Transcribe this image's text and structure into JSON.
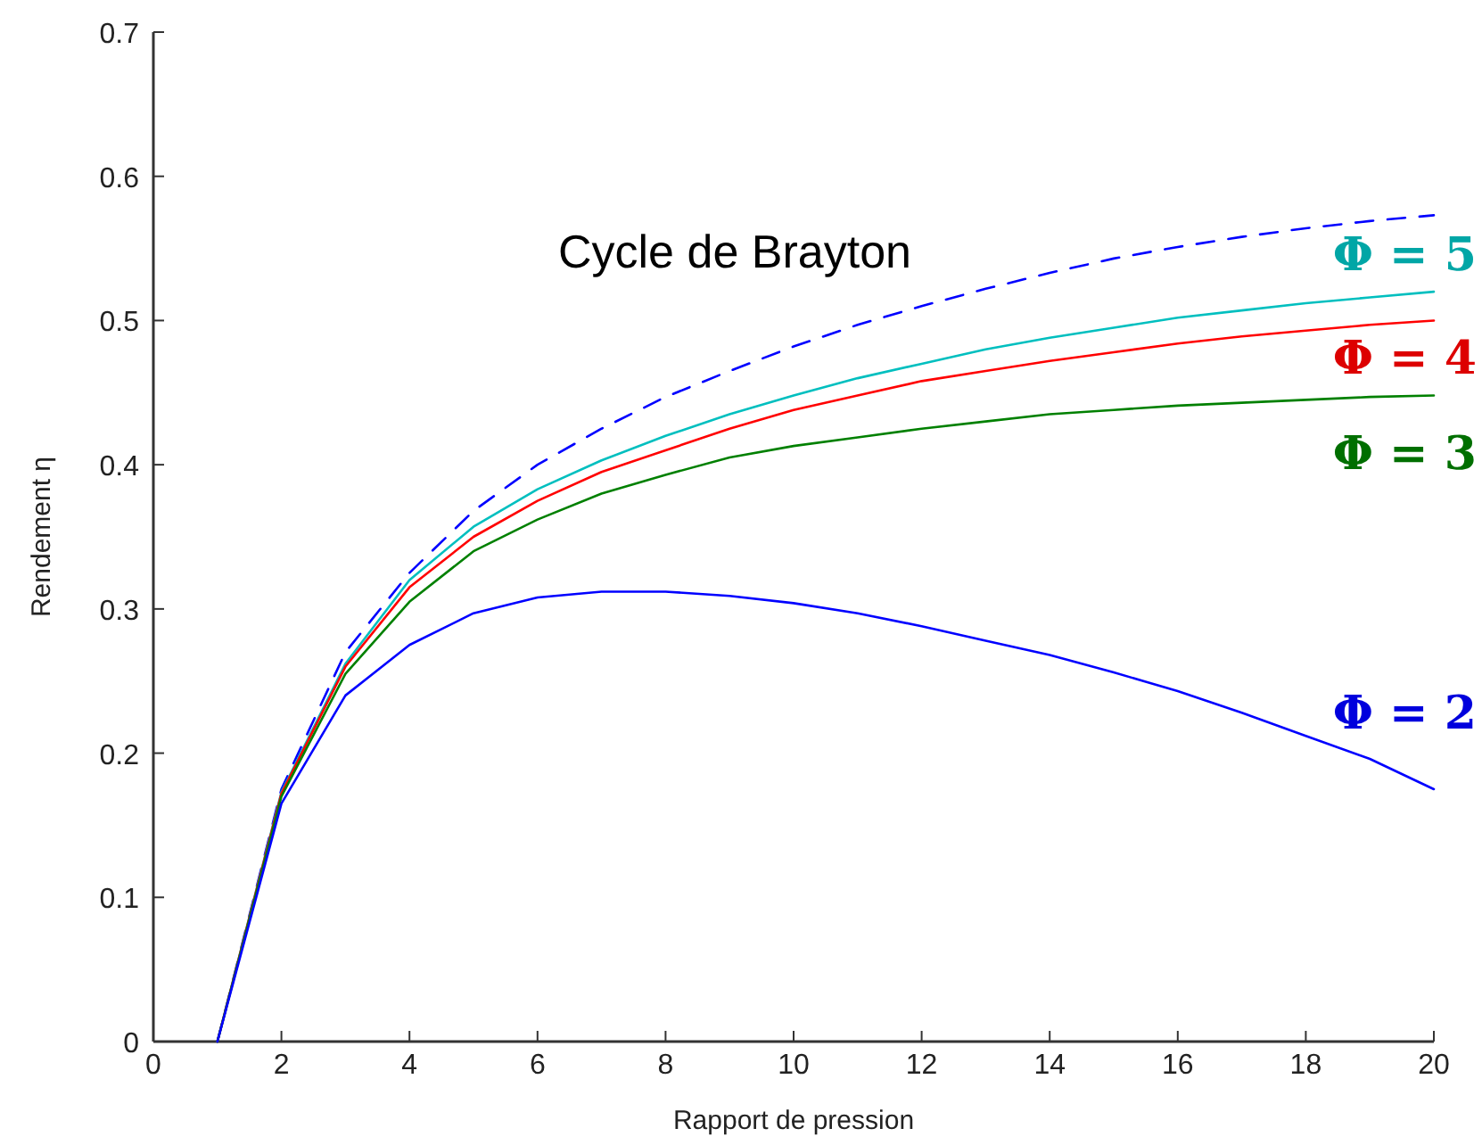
{
  "chart_data": {
    "type": "line",
    "title": "Cycle de Brayton",
    "xlabel": "Rapport de pression",
    "ylabel": "Rendement η",
    "xlim": [
      0,
      20
    ],
    "xticks": [
      0,
      2,
      4,
      6,
      8,
      10,
      12,
      14,
      16,
      18,
      20
    ],
    "ylim": [
      0,
      0.7
    ],
    "yticks": [
      0,
      0.1,
      0.2,
      0.3,
      0.4,
      0.5,
      0.6,
      0.7
    ],
    "x": [
      1,
      2,
      3,
      4,
      5,
      6,
      7,
      8,
      9,
      10,
      11,
      12,
      13,
      14,
      15,
      16,
      17,
      18,
      19,
      20
    ],
    "grid": false,
    "marker": "none",
    "series": [
      {
        "color": "#0000ff",
        "line_style": "dashed",
        "values": [
          0,
          0.175,
          0.27,
          0.325,
          0.368,
          0.4,
          0.425,
          0.447,
          0.465,
          0.482,
          0.497,
          0.51,
          0.522,
          0.533,
          0.543,
          0.551,
          0.558,
          0.564,
          0.569,
          0.573
        ]
      },
      {
        "name": "Φ = 5",
        "color": "#00bfbf",
        "line_style": "solid",
        "values": [
          0,
          0.173,
          0.262,
          0.32,
          0.357,
          0.383,
          0.403,
          0.42,
          0.435,
          0.448,
          0.46,
          0.47,
          0.48,
          0.488,
          0.495,
          0.502,
          0.507,
          0.512,
          0.516,
          0.52
        ]
      },
      {
        "name": "Φ = 4",
        "color": "#ff0000",
        "line_style": "solid",
        "values": [
          0,
          0.172,
          0.26,
          0.315,
          0.35,
          0.375,
          0.395,
          0.41,
          0.425,
          0.438,
          0.448,
          0.458,
          0.465,
          0.472,
          0.478,
          0.484,
          0.489,
          0.493,
          0.497,
          0.5
        ]
      },
      {
        "name": "Φ = 3",
        "color": "#008000",
        "line_style": "solid",
        "values": [
          0,
          0.17,
          0.255,
          0.305,
          0.34,
          0.362,
          0.38,
          0.393,
          0.405,
          0.413,
          0.419,
          0.425,
          0.43,
          0.435,
          0.438,
          0.441,
          0.443,
          0.445,
          0.447,
          0.448
        ]
      },
      {
        "name": "Φ = 2",
        "color": "#0000ff",
        "line_style": "solid",
        "values": [
          0,
          0.165,
          0.24,
          0.275,
          0.297,
          0.308,
          0.312,
          0.312,
          0.309,
          0.304,
          0.297,
          0.288,
          0.278,
          0.268,
          0.256,
          0.243,
          0.228,
          0.212,
          0.196,
          0.175
        ]
      }
    ]
  }
}
